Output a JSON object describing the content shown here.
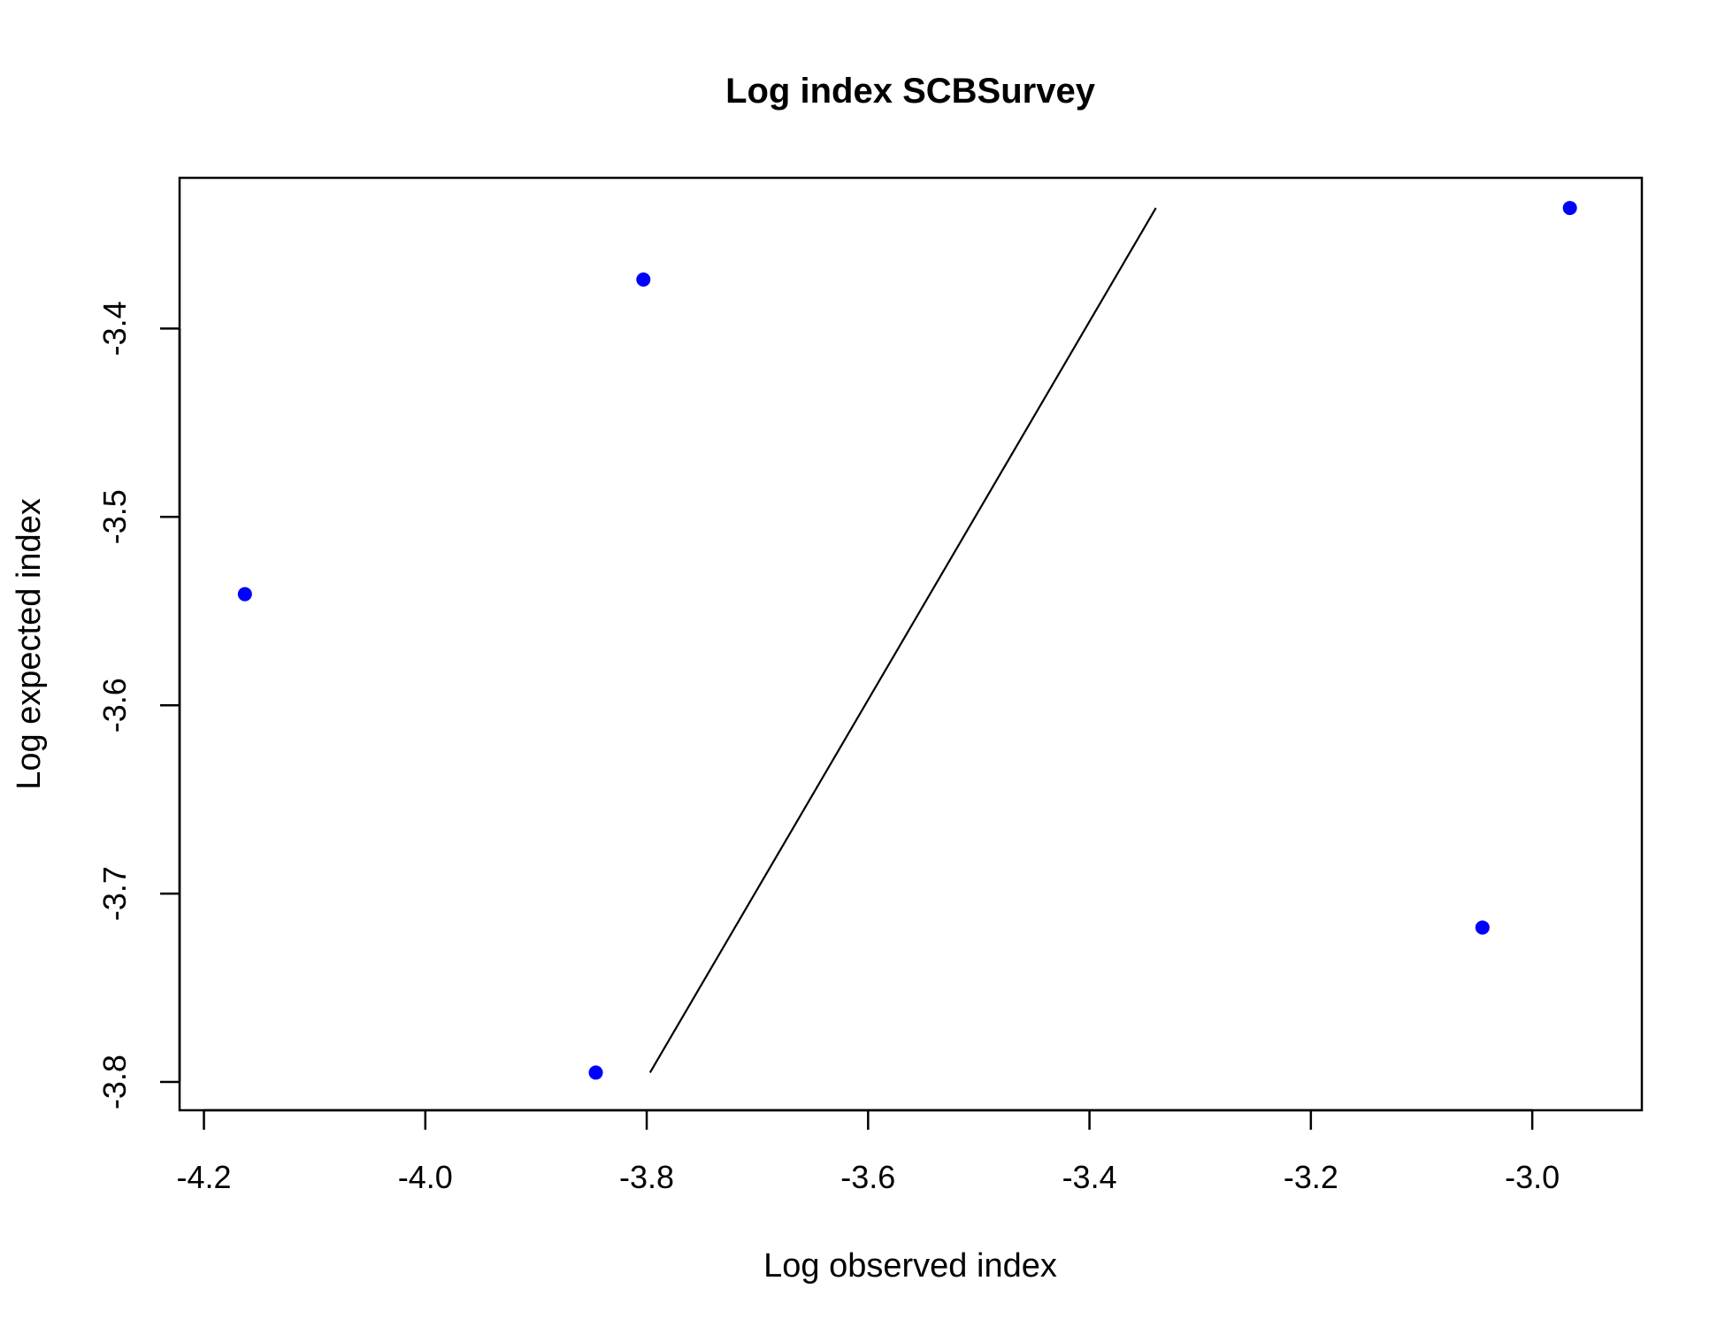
{
  "chart_data": {
    "type": "scatter",
    "title": "Log index SCBSurvey",
    "xlabel": "Log observed index",
    "ylabel": "Log expected index",
    "xlim": [
      -4.222,
      -2.901
    ],
    "ylim": [
      -3.815,
      -3.32
    ],
    "xticks": [
      -4.2,
      -4.0,
      -3.8,
      -3.6,
      -3.4,
      -3.2,
      -3.0
    ],
    "xtick_labels": [
      "-4.2",
      "-4.0",
      "-3.8",
      "-3.6",
      "-3.4",
      "-3.2",
      "-3.0"
    ],
    "yticks": [
      -3.8,
      -3.7,
      -3.6,
      -3.5,
      -3.4
    ],
    "ytick_labels": [
      "-3.8",
      "-3.7",
      "-3.6",
      "-3.5",
      "-3.4"
    ],
    "points": [
      {
        "x": -4.163,
        "y": -3.541
      },
      {
        "x": -3.846,
        "y": -3.795
      },
      {
        "x": -3.803,
        "y": -3.374
      },
      {
        "x": -3.045,
        "y": -3.718
      },
      {
        "x": -2.966,
        "y": -3.336
      }
    ],
    "point_color": "#0000ff",
    "line": {
      "x": [
        -3.797,
        -3.34
      ],
      "y": [
        -3.795,
        -3.336
      ]
    },
    "line_color": "#000000",
    "grid": false,
    "legend": "none"
  }
}
